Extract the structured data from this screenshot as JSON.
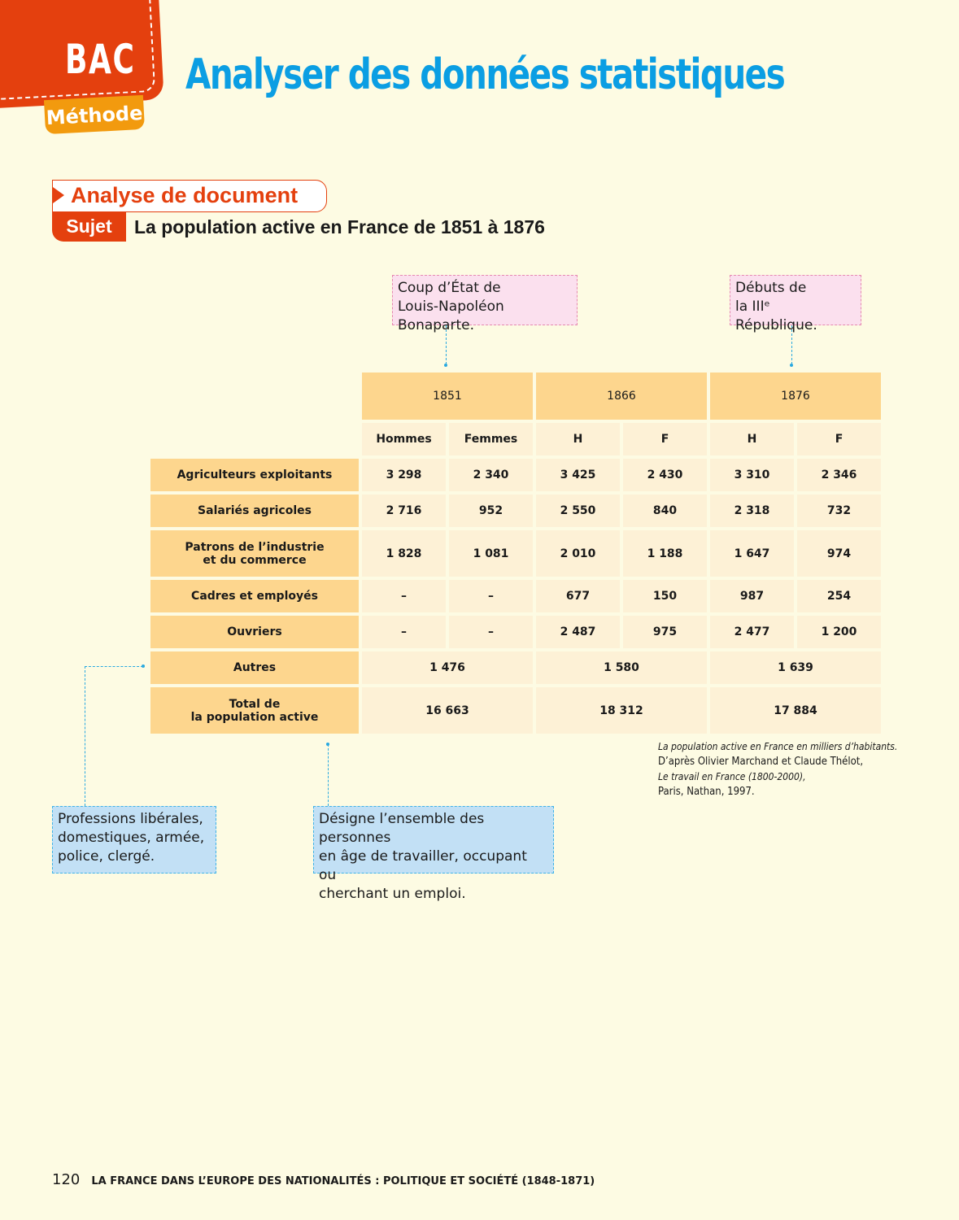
{
  "badge": {
    "bac": "BAC",
    "methode": "Méthode"
  },
  "page_title": "Analyser des données statistiques",
  "section": {
    "label": "Analyse de document",
    "sujet_label": "Sujet",
    "subject": "La population active en France de 1851 à 1876"
  },
  "annotations": {
    "coup_etat": [
      "Coup d’État de",
      "Louis-Napoléon Bonaparte."
    ],
    "republique": [
      "Débuts de",
      "la IIIᵉ République."
    ],
    "autres": [
      "Professions libérales,",
      "domestiques, armée,",
      "police, clergé."
    ],
    "population_active": [
      "Désigne l’ensemble des personnes",
      "en âge de travailler, occupant ou",
      "cherchant un emploi."
    ]
  },
  "table": {
    "years": [
      "1851",
      "1866",
      "1876"
    ],
    "subheaders": [
      "Hommes",
      "Femmes",
      "H",
      "F",
      "H",
      "F"
    ],
    "rows": [
      {
        "label": [
          "Agriculteurs exploitants"
        ],
        "values": [
          "3 298",
          "2 340",
          "3 425",
          "2 430",
          "3 310",
          "2 346"
        ]
      },
      {
        "label": [
          "Salariés agricoles"
        ],
        "values": [
          "2 716",
          "952",
          "2 550",
          "840",
          "2 318",
          "732"
        ]
      },
      {
        "label": [
          "Patrons de l’industrie",
          "et du commerce"
        ],
        "values": [
          "1 828",
          "1 081",
          "2 010",
          "1 188",
          "1 647",
          "974"
        ]
      },
      {
        "label": [
          "Cadres et employés"
        ],
        "values": [
          "–",
          "–",
          "677",
          "150",
          "987",
          "254"
        ]
      },
      {
        "label": [
          "Ouvriers"
        ],
        "values": [
          "–",
          "–",
          "2 487",
          "975",
          "2 477",
          "1 200"
        ]
      }
    ],
    "autres": {
      "label": [
        "Autres"
      ],
      "values": [
        "1 476",
        "1 580",
        "1 639"
      ]
    },
    "total": {
      "label": [
        "Total de",
        "la population active"
      ],
      "values": [
        "16 663",
        "18 312",
        "17 884"
      ]
    }
  },
  "source": {
    "caption": "La population active en France en milliers d’habitants.",
    "line1": "D’après Olivier Marchand et Claude Thélot,",
    "book": "Le travail en France (1800-2000),",
    "line3": "Paris, Nathan, 1997."
  },
  "footer": {
    "page": "120",
    "chapter": "LA FRANCE DANS L’EUROPE DES NATIONALITÉS : POLITIQUE ET SOCIÉTÉ (1848-1871)"
  }
}
